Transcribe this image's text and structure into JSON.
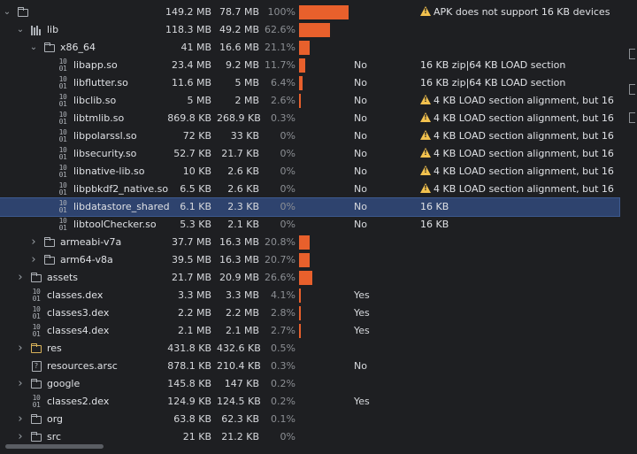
{
  "rows": [
    {
      "indent": 0,
      "chevron": "expanded",
      "icon": "folder-icon",
      "name": "",
      "raw": "149.2 MB",
      "download": "78.7 MB",
      "percent": "100%",
      "pctfrac": 1.0,
      "align": "",
      "note": "APK does not support 16 KB devices",
      "warn": true
    },
    {
      "indent": 1,
      "chevron": "expanded",
      "icon": "library-icon",
      "name": "lib",
      "raw": "118.3 MB",
      "download": "49.2 MB",
      "percent": "62.6%",
      "pctfrac": 0.626,
      "align": "",
      "note": "",
      "warn": false
    },
    {
      "indent": 2,
      "chevron": "expanded",
      "icon": "folder-icon",
      "name": "x86_64",
      "raw": "41 MB",
      "download": "16.6 MB",
      "percent": "21.1%",
      "pctfrac": 0.211,
      "align": "",
      "note": "",
      "warn": false
    },
    {
      "indent": 3,
      "chevron": "",
      "icon": "binary-file-icon",
      "name": "libapp.so",
      "raw": "23.4 MB",
      "download": "9.2 MB",
      "percent": "11.7%",
      "pctfrac": 0.117,
      "align": "No",
      "note": "16 KB zip|64 KB LOAD section",
      "warn": false
    },
    {
      "indent": 3,
      "chevron": "",
      "icon": "binary-file-icon",
      "name": "libflutter.so",
      "raw": "11.6 MB",
      "download": "5 MB",
      "percent": "6.4%",
      "pctfrac": 0.064,
      "align": "No",
      "note": "16 KB zip|64 KB LOAD section",
      "warn": false
    },
    {
      "indent": 3,
      "chevron": "",
      "icon": "binary-file-icon",
      "name": "libclib.so",
      "raw": "5 MB",
      "download": "2 MB",
      "percent": "2.6%",
      "pctfrac": 0.026,
      "align": "No",
      "note": "4 KB LOAD section alignment, but 16",
      "warn": true
    },
    {
      "indent": 3,
      "chevron": "",
      "icon": "binary-file-icon",
      "name": "libtmlib.so",
      "raw": "869.8 KB",
      "download": "268.9 KB",
      "percent": "0.3%",
      "pctfrac": 0.0,
      "align": "No",
      "note": "4 KB LOAD section alignment, but 16",
      "warn": true
    },
    {
      "indent": 3,
      "chevron": "",
      "icon": "binary-file-icon",
      "name": "libpolarssl.so",
      "raw": "72 KB",
      "download": "33 KB",
      "percent": "0%",
      "pctfrac": 0.0,
      "align": "No",
      "note": "4 KB LOAD section alignment, but 16",
      "warn": true
    },
    {
      "indent": 3,
      "chevron": "",
      "icon": "binary-file-icon",
      "name": "libsecurity.so",
      "raw": "52.7 KB",
      "download": "21.7 KB",
      "percent": "0%",
      "pctfrac": 0.0,
      "align": "No",
      "note": "4 KB LOAD section alignment, but 16",
      "warn": true
    },
    {
      "indent": 3,
      "chevron": "",
      "icon": "binary-file-icon",
      "name": "libnative-lib.so",
      "raw": "10 KB",
      "download": "2.6 KB",
      "percent": "0%",
      "pctfrac": 0.0,
      "align": "No",
      "note": "4 KB LOAD section alignment, but 16",
      "warn": true
    },
    {
      "indent": 3,
      "chevron": "",
      "icon": "binary-file-icon",
      "name": "libpbkdf2_native.so",
      "raw": "6.5 KB",
      "download": "2.6 KB",
      "percent": "0%",
      "pctfrac": 0.0,
      "align": "No",
      "note": "4 KB LOAD section alignment, but 16",
      "warn": true
    },
    {
      "indent": 3,
      "chevron": "",
      "icon": "binary-file-icon",
      "name": "libdatastore_shared",
      "raw": "6.1 KB",
      "download": "2.3 KB",
      "percent": "0%",
      "pctfrac": 0.0,
      "align": "No",
      "note": "16 KB",
      "warn": false,
      "selected": true
    },
    {
      "indent": 3,
      "chevron": "",
      "icon": "binary-file-icon",
      "name": "libtoolChecker.so",
      "raw": "5.3 KB",
      "download": "2.1 KB",
      "percent": "0%",
      "pctfrac": 0.0,
      "align": "No",
      "note": "16 KB",
      "warn": false
    },
    {
      "indent": 2,
      "chevron": "collapsed",
      "icon": "folder-icon",
      "name": "armeabi-v7a",
      "raw": "37.7 MB",
      "download": "16.3 MB",
      "percent": "20.8%",
      "pctfrac": 0.208,
      "align": "",
      "note": "",
      "warn": false
    },
    {
      "indent": 2,
      "chevron": "collapsed",
      "icon": "folder-icon",
      "name": "arm64-v8a",
      "raw": "39.5 MB",
      "download": "16.3 MB",
      "percent": "20.7%",
      "pctfrac": 0.207,
      "align": "",
      "note": "",
      "warn": false
    },
    {
      "indent": 1,
      "chevron": "collapsed",
      "icon": "folder-icon",
      "name": "assets",
      "raw": "21.7 MB",
      "download": "20.9 MB",
      "percent": "26.6%",
      "pctfrac": 0.266,
      "align": "",
      "note": "",
      "warn": false
    },
    {
      "indent": 1,
      "chevron": "",
      "icon": "binary-file-icon",
      "name": "classes.dex",
      "raw": "3.3 MB",
      "download": "3.3 MB",
      "percent": "4.1%",
      "pctfrac": 0.041,
      "align": "Yes",
      "note": "",
      "warn": false
    },
    {
      "indent": 1,
      "chevron": "",
      "icon": "binary-file-icon",
      "name": "classes3.dex",
      "raw": "2.2 MB",
      "download": "2.2 MB",
      "percent": "2.8%",
      "pctfrac": 0.028,
      "align": "Yes",
      "note": "",
      "warn": false
    },
    {
      "indent": 1,
      "chevron": "",
      "icon": "binary-file-icon",
      "name": "classes4.dex",
      "raw": "2.1 MB",
      "download": "2.1 MB",
      "percent": "2.7%",
      "pctfrac": 0.027,
      "align": "Yes",
      "note": "",
      "warn": false
    },
    {
      "indent": 1,
      "chevron": "collapsed",
      "icon": "resource-folder-icon",
      "name": "res",
      "raw": "431.8 KB",
      "download": "432.6 KB",
      "percent": "0.5%",
      "pctfrac": 0.0,
      "align": "",
      "note": "",
      "warn": false
    },
    {
      "indent": 1,
      "chevron": "",
      "icon": "unknown-file-icon",
      "name": "resources.arsc",
      "raw": "878.1 KB",
      "download": "210.4 KB",
      "percent": "0.3%",
      "pctfrac": 0.0,
      "align": "No",
      "note": "",
      "warn": false
    },
    {
      "indent": 1,
      "chevron": "collapsed",
      "icon": "folder-icon",
      "name": "google",
      "raw": "145.8 KB",
      "download": "147 KB",
      "percent": "0.2%",
      "pctfrac": 0.0,
      "align": "",
      "note": "",
      "warn": false
    },
    {
      "indent": 1,
      "chevron": "",
      "icon": "binary-file-icon",
      "name": "classes2.dex",
      "raw": "124.9 KB",
      "download": "124.5 KB",
      "percent": "0.2%",
      "pctfrac": 0.0,
      "align": "Yes",
      "note": "",
      "warn": false
    },
    {
      "indent": 1,
      "chevron": "collapsed",
      "icon": "folder-icon",
      "name": "org",
      "raw": "63.8 KB",
      "download": "62.3 KB",
      "percent": "0.1%",
      "pctfrac": 0.0,
      "align": "",
      "note": "",
      "warn": false
    },
    {
      "indent": 1,
      "chevron": "collapsed",
      "icon": "folder-icon",
      "name": "src",
      "raw": "21 KB",
      "download": "21.2 KB",
      "percent": "0%",
      "pctfrac": 0.0,
      "align": "",
      "note": "",
      "warn": false
    }
  ],
  "colors": {
    "bar": "#e8602c",
    "selected": "#2e436e",
    "warning": "#f2c14e"
  }
}
